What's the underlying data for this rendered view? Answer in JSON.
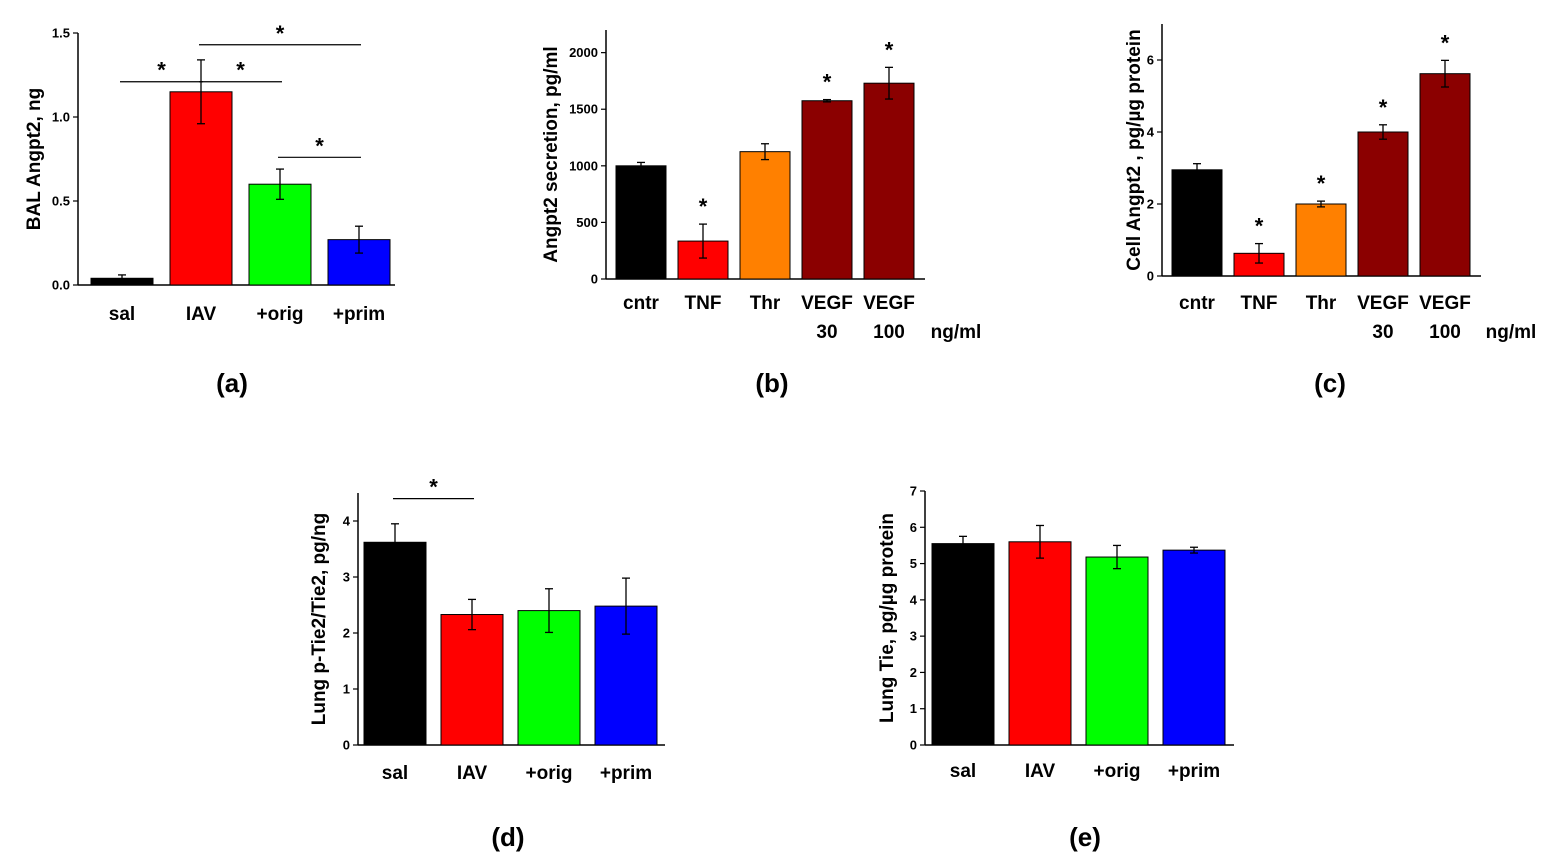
{
  "figure_title": "",
  "chart_data": [
    {
      "panel": "(a)",
      "type": "bar",
      "categories": [
        "sal",
        "IAV",
        "+orig",
        "+prim"
      ],
      "colors": [
        "#000000",
        "#ff0000",
        "#00ff00",
        "#0000ff"
      ],
      "values": [
        0.04,
        1.15,
        0.6,
        0.27
      ],
      "errors": [
        0.02,
        0.19,
        0.09,
        0.08
      ],
      "ylabel": "BAL Angpt2, ng",
      "ylim": [
        0,
        1.5
      ],
      "yticks": [
        0.0,
        0.5,
        1.0,
        1.5
      ],
      "ytick_labels": [
        "0.0",
        "0.5",
        "1.0",
        "1.5"
      ],
      "unit_label": "",
      "significance": [
        {
          "type": "bracket",
          "from": 0,
          "to": 1,
          "level": 1.21,
          "label": "*"
        },
        {
          "type": "bracket",
          "from": 1,
          "to": 2,
          "level": 1.21,
          "label": "*"
        },
        {
          "type": "bracket",
          "from": 1,
          "to": 3,
          "level": 1.43,
          "label": "*"
        },
        {
          "type": "bracket",
          "from": 2,
          "to": 3,
          "level": 0.76,
          "label": "*"
        }
      ]
    },
    {
      "panel": "(b)",
      "type": "bar",
      "categories": [
        "cntr",
        "TNF",
        "Thr",
        "VEGF 30",
        "VEGF 100"
      ],
      "category_lines": [
        [
          "cntr"
        ],
        [
          "TNF"
        ],
        [
          "Thr"
        ],
        [
          "VEGF",
          "30"
        ],
        [
          "VEGF",
          "100"
        ]
      ],
      "colors": [
        "#000000",
        "#ff0000",
        "#ff8000",
        "#8b0000",
        "#8b0000"
      ],
      "values": [
        1000,
        335,
        1125,
        1575,
        1730
      ],
      "errors": [
        30,
        150,
        70,
        10,
        140
      ],
      "ylabel": "Angpt2 secretion, pg/ml",
      "ylim": [
        0,
        2200
      ],
      "yticks": [
        0,
        500,
        1000,
        1500,
        2000
      ],
      "ytick_labels": [
        "0",
        "500",
        "1000",
        "1500",
        "2000"
      ],
      "unit_label": "ng/ml",
      "significance": [
        {
          "type": "star",
          "index": 1,
          "label": "*"
        },
        {
          "type": "star",
          "index": 3,
          "label": "*"
        },
        {
          "type": "star",
          "index": 4,
          "label": "*"
        }
      ]
    },
    {
      "panel": "(c)",
      "type": "bar",
      "categories": [
        "cntr",
        "TNF",
        "Thr",
        "VEGF 30",
        "VEGF 100"
      ],
      "category_lines": [
        [
          "cntr"
        ],
        [
          "TNF"
        ],
        [
          "Thr"
        ],
        [
          "VEGF",
          "30"
        ],
        [
          "VEGF",
          "100"
        ]
      ],
      "colors": [
        "#000000",
        "#ff0000",
        "#ff8000",
        "#8b0000",
        "#8b0000"
      ],
      "values": [
        2.95,
        0.63,
        2.0,
        4.0,
        5.62
      ],
      "errors": [
        0.17,
        0.27,
        0.08,
        0.2,
        0.37
      ],
      "ylabel": "Cell Angpt2 , pg/µg protein",
      "ylim": [
        0,
        7
      ],
      "yticks": [
        0,
        2,
        4,
        6
      ],
      "ytick_labels": [
        "0",
        "2",
        "4",
        "6"
      ],
      "unit_label": "ng/ml",
      "significance": [
        {
          "type": "star",
          "index": 1,
          "label": "*"
        },
        {
          "type": "star",
          "index": 2,
          "label": "*"
        },
        {
          "type": "star",
          "index": 3,
          "label": "*"
        },
        {
          "type": "star",
          "index": 4,
          "label": "*"
        }
      ]
    },
    {
      "panel": "(d)",
      "type": "bar",
      "categories": [
        "sal",
        "IAV",
        "+orig",
        "+prim"
      ],
      "colors": [
        "#000000",
        "#ff0000",
        "#00ff00",
        "#0000ff"
      ],
      "values": [
        3.62,
        2.33,
        2.4,
        2.48
      ],
      "errors": [
        0.33,
        0.27,
        0.39,
        0.5
      ],
      "ylabel": "Lung p-Tie2/Tie2, pg/ng",
      "ylim": [
        0,
        4.5
      ],
      "yticks": [
        0,
        1,
        2,
        3,
        4
      ],
      "ytick_labels": [
        "0",
        "1",
        "2",
        "3",
        "4"
      ],
      "unit_label": "",
      "significance": [
        {
          "type": "bracket",
          "from": 0,
          "to": 1,
          "level": 4.4,
          "label": "*"
        }
      ]
    },
    {
      "panel": "(e)",
      "type": "bar",
      "categories": [
        "sal",
        "IAV",
        "+orig",
        "+prim"
      ],
      "colors": [
        "#000000",
        "#ff0000",
        "#00ff00",
        "#0000ff"
      ],
      "values": [
        5.55,
        5.6,
        5.18,
        5.37
      ],
      "errors": [
        0.2,
        0.45,
        0.32,
        0.08
      ],
      "ylabel": "Lung Tie, pg/µg protein",
      "ylim": [
        0,
        7
      ],
      "yticks": [
        0,
        1,
        2,
        3,
        4,
        5,
        6,
        7
      ],
      "ytick_labels": [
        "0",
        "1",
        "2",
        "3",
        "4",
        "5",
        "6",
        "7"
      ],
      "unit_label": "",
      "significance": []
    }
  ]
}
